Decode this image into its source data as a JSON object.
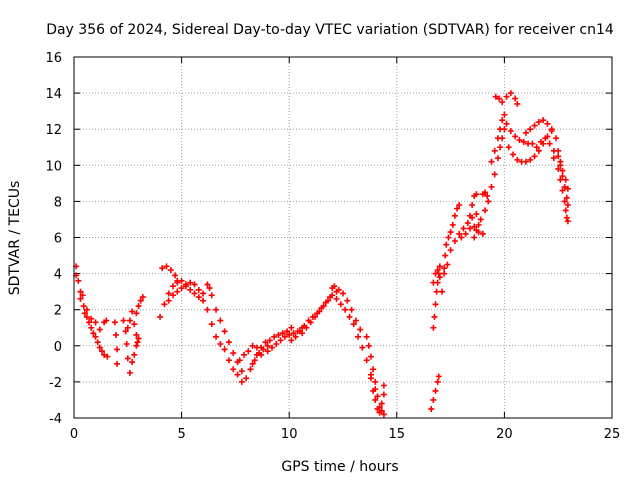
{
  "chart_data": {
    "type": "scatter",
    "title": "Day 356 of 2024, Sidereal Day-to-day VTEC variation (SDTVAR) for receiver cn14",
    "xlabel": "GPS time / hours",
    "ylabel": "SDTVAR / TECUs",
    "xlim": [
      0,
      25
    ],
    "ylim": [
      -4,
      16
    ],
    "x_ticks": [
      0,
      5,
      10,
      15,
      20,
      25
    ],
    "y_ticks": [
      -4,
      -2,
      0,
      2,
      4,
      6,
      8,
      10,
      12,
      14,
      16
    ],
    "x_tick_labels": [
      "0",
      "5",
      "10",
      "15",
      "20",
      "25"
    ],
    "y_tick_labels": [
      "-4",
      "-2",
      "0",
      "2",
      "4",
      "6",
      "8",
      "10",
      "12",
      "14",
      "16"
    ],
    "grid": true,
    "marker": "plus",
    "color": "#ff0000",
    "series": [
      {
        "name": "SDTVAR",
        "points": [
          [
            0.1,
            4.4
          ],
          [
            0.2,
            3.6
          ],
          [
            0.3,
            3.0
          ],
          [
            0.45,
            2.2
          ],
          [
            0.6,
            1.6
          ],
          [
            0.8,
            1.0
          ],
          [
            1.0,
            0.5
          ],
          [
            1.2,
            -0.1
          ],
          [
            1.4,
            -0.5
          ],
          [
            1.55,
            -0.6
          ],
          [
            0.1,
            3.9
          ],
          [
            0.3,
            2.6
          ],
          [
            0.5,
            1.8
          ],
          [
            0.7,
            1.3
          ],
          [
            0.9,
            0.7
          ],
          [
            1.1,
            0.2
          ],
          [
            1.3,
            -0.3
          ],
          [
            0.4,
            2.8
          ],
          [
            0.6,
            2.0
          ],
          [
            0.8,
            1.5
          ],
          [
            1.0,
            1.3
          ],
          [
            1.2,
            0.9
          ],
          [
            1.4,
            1.3
          ],
          [
            1.5,
            1.4
          ],
          [
            1.9,
            1.3
          ],
          [
            1.95,
            0.6
          ],
          [
            2.0,
            -0.2
          ],
          [
            2.0,
            -1.0
          ],
          [
            2.3,
            1.4
          ],
          [
            2.4,
            0.8
          ],
          [
            2.45,
            0.1
          ],
          [
            2.5,
            -0.7
          ],
          [
            2.6,
            -1.5
          ],
          [
            2.5,
            1.0
          ],
          [
            2.6,
            1.4
          ],
          [
            2.7,
            1.9
          ],
          [
            2.8,
            1.2
          ],
          [
            2.9,
            0.6
          ],
          [
            2.95,
            0.2
          ],
          [
            2.7,
            -0.9
          ],
          [
            2.8,
            -0.5
          ],
          [
            2.9,
            0.0
          ],
          [
            3.0,
            0.4
          ],
          [
            2.9,
            1.8
          ],
          [
            3.0,
            2.2
          ],
          [
            3.1,
            2.5
          ],
          [
            3.2,
            2.7
          ],
          [
            4.0,
            1.6
          ],
          [
            4.2,
            2.3
          ],
          [
            4.4,
            2.9
          ],
          [
            4.6,
            3.3
          ],
          [
            4.8,
            3.5
          ],
          [
            5.0,
            3.6
          ],
          [
            5.2,
            3.3
          ],
          [
            5.4,
            3.1
          ],
          [
            5.6,
            2.9
          ],
          [
            5.8,
            2.7
          ],
          [
            4.1,
            4.3
          ],
          [
            4.3,
            4.4
          ],
          [
            4.5,
            4.2
          ],
          [
            4.7,
            3.9
          ],
          [
            4.8,
            3.6
          ],
          [
            4.4,
            2.5
          ],
          [
            4.6,
            2.8
          ],
          [
            4.8,
            3.0
          ],
          [
            5.0,
            3.2
          ],
          [
            5.2,
            3.4
          ],
          [
            5.4,
            3.5
          ],
          [
            5.6,
            3.4
          ],
          [
            5.8,
            3.1
          ],
          [
            6.0,
            2.9
          ],
          [
            6.0,
            2.5
          ],
          [
            6.2,
            2.0
          ],
          [
            6.4,
            1.2
          ],
          [
            6.6,
            0.5
          ],
          [
            6.8,
            0.1
          ],
          [
            7.0,
            -0.2
          ],
          [
            7.2,
            -0.8
          ],
          [
            7.4,
            -1.3
          ],
          [
            7.6,
            -1.6
          ],
          [
            7.8,
            -2.0
          ],
          [
            6.2,
            3.4
          ],
          [
            6.3,
            3.2
          ],
          [
            6.4,
            2.8
          ],
          [
            6.6,
            2.0
          ],
          [
            6.8,
            1.4
          ],
          [
            7.0,
            0.8
          ],
          [
            7.2,
            0.2
          ],
          [
            7.4,
            -0.4
          ],
          [
            7.6,
            -0.9
          ],
          [
            7.8,
            -1.4
          ],
          [
            8.0,
            -1.8
          ],
          [
            8.2,
            -1.3
          ],
          [
            8.4,
            -0.8
          ],
          [
            8.6,
            -0.4
          ],
          [
            8.8,
            -0.2
          ],
          [
            9.0,
            0.0
          ],
          [
            7.7,
            -0.8
          ],
          [
            7.9,
            -0.5
          ],
          [
            8.1,
            -0.3
          ],
          [
            8.3,
            0.0
          ],
          [
            8.5,
            -0.1
          ],
          [
            8.7,
            -0.5
          ],
          [
            8.3,
            -1.0
          ],
          [
            8.5,
            -0.5
          ],
          [
            8.7,
            -0.1
          ],
          [
            8.9,
            0.2
          ],
          [
            9.1,
            0.3
          ],
          [
            9.3,
            0.5
          ],
          [
            9.5,
            0.6
          ],
          [
            9.7,
            0.7
          ],
          [
            9.9,
            0.8
          ],
          [
            10.1,
            1.0
          ],
          [
            9.0,
            -0.3
          ],
          [
            9.2,
            -0.1
          ],
          [
            9.4,
            0.1
          ],
          [
            9.6,
            0.3
          ],
          [
            9.8,
            0.5
          ],
          [
            10.0,
            0.6
          ],
          [
            10.2,
            0.7
          ],
          [
            10.4,
            0.8
          ],
          [
            10.6,
            1.0
          ],
          [
            10.1,
            0.3
          ],
          [
            10.3,
            0.5
          ],
          [
            10.5,
            0.8
          ],
          [
            10.7,
            1.1
          ],
          [
            10.9,
            1.4
          ],
          [
            11.1,
            1.6
          ],
          [
            11.3,
            1.8
          ],
          [
            11.5,
            2.1
          ],
          [
            11.7,
            2.4
          ],
          [
            11.9,
            2.7
          ],
          [
            10.6,
            0.7
          ],
          [
            10.8,
            1.0
          ],
          [
            11.0,
            1.3
          ],
          [
            11.2,
            1.6
          ],
          [
            11.4,
            1.9
          ],
          [
            11.6,
            2.2
          ],
          [
            11.8,
            2.5
          ],
          [
            12.0,
            2.8
          ],
          [
            12.2,
            3.0
          ],
          [
            12.0,
            3.2
          ],
          [
            12.1,
            3.3
          ],
          [
            12.3,
            3.1
          ],
          [
            12.5,
            2.9
          ],
          [
            12.7,
            2.5
          ],
          [
            12.9,
            2.0
          ],
          [
            13.1,
            1.4
          ],
          [
            13.3,
            0.9
          ],
          [
            12.2,
            2.6
          ],
          [
            12.4,
            2.3
          ],
          [
            12.6,
            2.0
          ],
          [
            12.8,
            1.6
          ],
          [
            13.0,
            1.2
          ],
          [
            13.2,
            0.5
          ],
          [
            13.4,
            -0.1
          ],
          [
            13.6,
            -0.8
          ],
          [
            13.8,
            -1.6
          ],
          [
            14.0,
            -2.4
          ],
          [
            13.6,
            0.5
          ],
          [
            13.7,
            0.0
          ],
          [
            13.8,
            -0.6
          ],
          [
            13.9,
            -1.3
          ],
          [
            14.0,
            -2.0
          ],
          [
            14.1,
            -2.8
          ],
          [
            14.2,
            -3.4
          ],
          [
            14.3,
            -3.6
          ],
          [
            14.4,
            -3.8
          ],
          [
            13.8,
            -1.8
          ],
          [
            13.9,
            -2.5
          ],
          [
            14.0,
            -3.0
          ],
          [
            14.1,
            -3.5
          ],
          [
            14.2,
            -3.7
          ],
          [
            14.3,
            -3.2
          ],
          [
            14.4,
            -2.7
          ],
          [
            14.4,
            -2.2
          ],
          [
            16.6,
            -3.5
          ],
          [
            16.7,
            -3.0
          ],
          [
            16.8,
            -2.5
          ],
          [
            16.9,
            -2.0
          ],
          [
            16.95,
            -1.7
          ],
          [
            16.7,
            1.0
          ],
          [
            16.75,
            1.6
          ],
          [
            16.8,
            2.3
          ],
          [
            16.85,
            3.0
          ],
          [
            16.9,
            3.5
          ],
          [
            16.95,
            4.0
          ],
          [
            17.0,
            4.4
          ],
          [
            16.7,
            3.5
          ],
          [
            16.8,
            4.0
          ],
          [
            16.9,
            4.2
          ],
          [
            17.0,
            3.8
          ],
          [
            17.1,
            3.0
          ],
          [
            17.2,
            4.3
          ],
          [
            17.25,
            5.0
          ],
          [
            17.3,
            5.6
          ],
          [
            17.4,
            6.0
          ],
          [
            17.5,
            6.3
          ],
          [
            17.6,
            6.7
          ],
          [
            17.7,
            7.2
          ],
          [
            17.8,
            7.6
          ],
          [
            17.9,
            7.8
          ],
          [
            17.2,
            4.0
          ],
          [
            17.35,
            4.5
          ],
          [
            17.5,
            5.3
          ],
          [
            17.7,
            5.8
          ],
          [
            17.9,
            6.2
          ],
          [
            18.1,
            6.5
          ],
          [
            18.3,
            6.8
          ],
          [
            18.5,
            7.1
          ],
          [
            18.7,
            7.3
          ],
          [
            18.9,
            7.0
          ],
          [
            18.0,
            6.0
          ],
          [
            18.2,
            6.2
          ],
          [
            18.4,
            6.5
          ],
          [
            18.6,
            6.6
          ],
          [
            18.8,
            6.3
          ],
          [
            19.0,
            6.2
          ],
          [
            18.4,
            7.2
          ],
          [
            18.5,
            7.8
          ],
          [
            18.6,
            8.3
          ],
          [
            18.7,
            8.4
          ],
          [
            18.6,
            6.0
          ],
          [
            18.7,
            6.4
          ],
          [
            18.8,
            6.7
          ],
          [
            19.0,
            8.4
          ],
          [
            19.1,
            8.5
          ],
          [
            19.2,
            8.3
          ],
          [
            19.1,
            7.5
          ],
          [
            19.25,
            8.0
          ],
          [
            19.4,
            8.8
          ],
          [
            19.55,
            9.5
          ],
          [
            19.7,
            10.4
          ],
          [
            19.8,
            11.0
          ],
          [
            19.9,
            11.5
          ],
          [
            20.0,
            12.0
          ],
          [
            19.4,
            10.2
          ],
          [
            19.55,
            10.8
          ],
          [
            19.7,
            11.5
          ],
          [
            19.8,
            12.0
          ],
          [
            19.9,
            12.5
          ],
          [
            20.0,
            12.8
          ],
          [
            19.6,
            13.8
          ],
          [
            19.75,
            13.7
          ],
          [
            19.9,
            13.5
          ],
          [
            20.1,
            13.8
          ],
          [
            20.3,
            14.0
          ],
          [
            20.5,
            13.7
          ],
          [
            20.6,
            13.4
          ],
          [
            20.1,
            12.3
          ],
          [
            20.3,
            11.9
          ],
          [
            20.5,
            11.6
          ],
          [
            20.7,
            11.4
          ],
          [
            20.9,
            11.3
          ],
          [
            21.1,
            11.2
          ],
          [
            21.3,
            11.2
          ],
          [
            20.2,
            11.0
          ],
          [
            20.4,
            10.6
          ],
          [
            20.6,
            10.3
          ],
          [
            20.8,
            10.2
          ],
          [
            21.0,
            10.2
          ],
          [
            21.2,
            10.3
          ],
          [
            21.4,
            10.5
          ],
          [
            21.6,
            10.8
          ],
          [
            21.8,
            11.2
          ],
          [
            22.0,
            11.6
          ],
          [
            21.0,
            11.8
          ],
          [
            21.2,
            12.0
          ],
          [
            21.4,
            12.2
          ],
          [
            21.6,
            12.4
          ],
          [
            21.8,
            12.5
          ],
          [
            22.0,
            12.3
          ],
          [
            22.2,
            11.9
          ],
          [
            21.5,
            11.0
          ],
          [
            21.7,
            11.3
          ],
          [
            21.9,
            11.5
          ],
          [
            22.1,
            11.2
          ],
          [
            22.3,
            10.8
          ],
          [
            22.5,
            10.5
          ],
          [
            22.6,
            10.2
          ],
          [
            22.2,
            12.0
          ],
          [
            22.4,
            11.5
          ],
          [
            22.5,
            10.8
          ],
          [
            22.6,
            10.0
          ],
          [
            22.7,
            9.4
          ],
          [
            22.8,
            8.8
          ],
          [
            22.9,
            8.2
          ],
          [
            22.95,
            7.8
          ],
          [
            22.3,
            10.4
          ],
          [
            22.5,
            9.8
          ],
          [
            22.6,
            9.2
          ],
          [
            22.7,
            8.6
          ],
          [
            22.8,
            8.0
          ],
          [
            22.85,
            7.5
          ],
          [
            22.9,
            7.1
          ],
          [
            22.95,
            6.9
          ],
          [
            22.7,
            9.7
          ],
          [
            22.85,
            9.2
          ],
          [
            22.95,
            8.7
          ]
        ]
      }
    ]
  }
}
